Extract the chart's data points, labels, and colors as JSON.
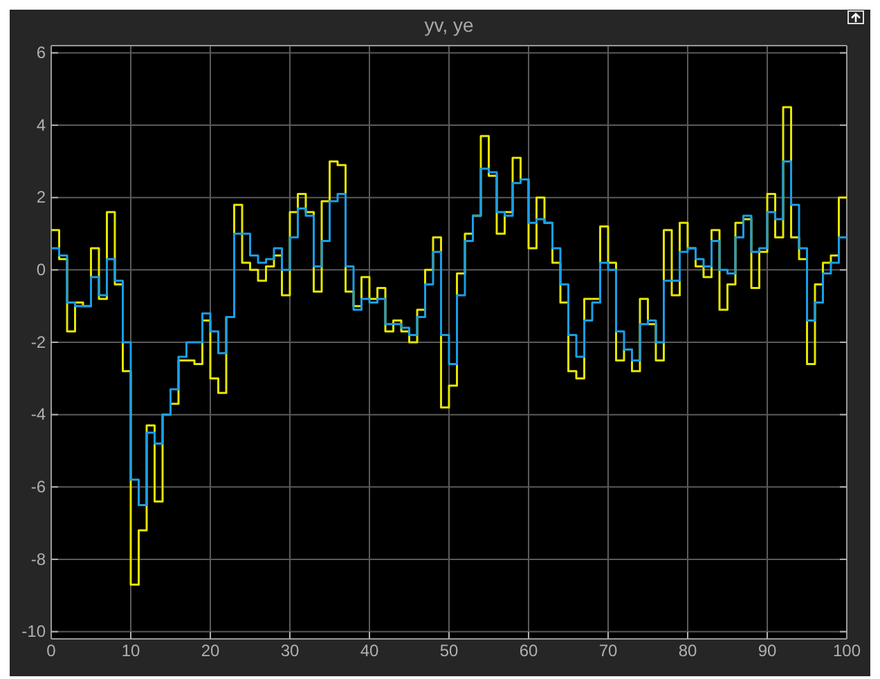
{
  "chart_data": {
    "type": "step",
    "title": "yv, ye",
    "x": [
      0,
      1,
      2,
      3,
      4,
      5,
      6,
      7,
      8,
      9,
      10,
      11,
      12,
      13,
      14,
      15,
      16,
      17,
      18,
      19,
      20,
      21,
      22,
      23,
      24,
      25,
      26,
      27,
      28,
      29,
      30,
      31,
      32,
      33,
      34,
      35,
      36,
      37,
      38,
      39,
      40,
      41,
      42,
      43,
      44,
      45,
      46,
      47,
      48,
      49,
      50,
      51,
      52,
      53,
      54,
      55,
      56,
      57,
      58,
      59,
      60,
      61,
      62,
      63,
      64,
      65,
      66,
      67,
      68,
      69,
      70,
      71,
      72,
      73,
      74,
      75,
      76,
      77,
      78,
      79,
      80,
      81,
      82,
      83,
      84,
      85,
      86,
      87,
      88,
      89,
      90,
      91,
      92,
      93,
      94,
      95,
      96,
      97,
      98,
      99,
      100
    ],
    "series": [
      {
        "color": "#e6e600",
        "values": [
          1.1,
          0.3,
          -1.7,
          -0.9,
          -1.0,
          0.6,
          -0.8,
          1.6,
          -0.4,
          -2.8,
          -8.7,
          -7.2,
          -4.3,
          -6.4,
          -4.0,
          -3.7,
          -2.5,
          -2.5,
          -2.6,
          -1.4,
          -3.0,
          -3.4,
          -1.3,
          1.8,
          0.2,
          0.0,
          -0.3,
          0.1,
          0.4,
          -0.7,
          1.6,
          2.1,
          1.6,
          -0.6,
          1.9,
          3.0,
          2.9,
          -0.6,
          -1.0,
          -0.2,
          -0.8,
          -0.5,
          -1.7,
          -1.4,
          -1.7,
          -2.0,
          -1.1,
          0.0,
          0.9,
          -3.8,
          -3.2,
          -0.1,
          1.0,
          1.5,
          3.7,
          2.6,
          1.0,
          1.6,
          3.1,
          2.5,
          0.6,
          2.0,
          1.3,
          0.2,
          -0.9,
          -2.8,
          -3.0,
          -0.8,
          -0.8,
          1.2,
          0.2,
          -2.5,
          -2.2,
          -2.8,
          -0.8,
          -1.5,
          -2.5,
          1.1,
          -0.7,
          1.3,
          0.6,
          0.1,
          -0.2,
          1.1,
          -1.1,
          -0.4,
          1.3,
          1.4,
          -0.5,
          0.5,
          2.1,
          0.9,
          4.5,
          0.9,
          0.3,
          -2.6,
          -0.4,
          0.2,
          0.4,
          2.0,
          2.0
        ]
      },
      {
        "color": "#1a9ee6",
        "values": [
          0.6,
          0.4,
          -0.9,
          -1.0,
          -1.0,
          -0.2,
          -0.7,
          0.3,
          -0.3,
          -2.0,
          -5.8,
          -6.5,
          -4.5,
          -4.8,
          -4.0,
          -3.3,
          -2.4,
          -2.0,
          -2.0,
          -1.2,
          -1.7,
          -2.3,
          -1.3,
          1.0,
          1.0,
          0.4,
          0.2,
          0.3,
          0.6,
          0.0,
          0.9,
          1.7,
          1.5,
          0.1,
          0.8,
          1.9,
          2.1,
          0.1,
          -1.1,
          -0.8,
          -0.9,
          -0.8,
          -1.5,
          -1.5,
          -1.6,
          -1.8,
          -1.3,
          -0.4,
          0.5,
          -1.8,
          -2.6,
          -0.7,
          0.8,
          1.5,
          2.8,
          2.7,
          1.6,
          1.5,
          2.4,
          2.5,
          1.3,
          1.4,
          1.3,
          0.6,
          -0.4,
          -1.8,
          -2.4,
          -1.4,
          -0.9,
          0.2,
          0.0,
          -1.7,
          -2.2,
          -2.5,
          -1.5,
          -1.4,
          -2.0,
          -0.3,
          -0.3,
          0.5,
          0.6,
          0.3,
          0.1,
          0.8,
          0.0,
          -0.1,
          0.9,
          1.5,
          0.5,
          0.6,
          1.6,
          1.4,
          3.0,
          1.8,
          0.6,
          -1.4,
          -0.9,
          -0.1,
          0.2,
          0.9,
          0.9
        ]
      }
    ],
    "xlim": [
      0,
      100
    ],
    "xticks": [
      0,
      10,
      20,
      30,
      40,
      50,
      60,
      70,
      80,
      90,
      100
    ],
    "ylim": [
      -10.2,
      6.2
    ],
    "yticks": [
      -10,
      -8,
      -6,
      -4,
      -2,
      0,
      2,
      4,
      6
    ],
    "grid": true,
    "marker": "none",
    "line_style": "solid"
  }
}
